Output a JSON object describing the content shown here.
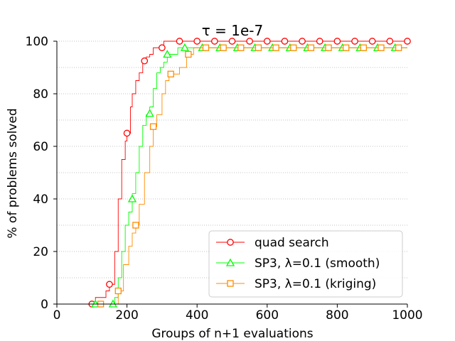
{
  "chart_data": {
    "type": "line",
    "title": "τ = 1e-7",
    "xlabel": "Groups of n+1 evaluations",
    "ylabel": "% of problems solved",
    "xlim": [
      0,
      1000
    ],
    "ylim": [
      0,
      100
    ],
    "xticks": [
      0,
      200,
      400,
      600,
      800,
      1000
    ],
    "yticks": [
      0,
      20,
      40,
      60,
      80,
      100
    ],
    "grid": "horizontal dotted",
    "legend_position": "lower-right",
    "series": [
      {
        "name": "quad search",
        "color": "#ff0000",
        "marker": "circle",
        "line": [
          [
            0,
            0
          ],
          [
            100,
            0
          ],
          [
            110,
            2.5
          ],
          [
            120,
            2.5
          ],
          [
            140,
            5
          ],
          [
            150,
            7.5
          ],
          [
            165,
            20
          ],
          [
            175,
            40
          ],
          [
            185,
            55
          ],
          [
            195,
            62
          ],
          [
            200,
            65
          ],
          [
            210,
            75
          ],
          [
            215,
            80
          ],
          [
            225,
            85
          ],
          [
            235,
            88
          ],
          [
            245,
            92
          ],
          [
            255,
            94
          ],
          [
            265,
            95
          ],
          [
            275,
            97.5
          ],
          [
            300,
            97.5
          ],
          [
            305,
            100
          ],
          [
            1000,
            100
          ]
        ],
        "markers": [
          [
            100,
            0
          ],
          [
            150,
            7.5
          ],
          [
            200,
            65
          ],
          [
            250,
            92.5
          ],
          [
            300,
            97.5
          ],
          [
            350,
            100
          ],
          [
            400,
            100
          ],
          [
            450,
            100
          ],
          [
            500,
            100
          ],
          [
            550,
            100
          ],
          [
            600,
            100
          ],
          [
            650,
            100
          ],
          [
            700,
            100
          ],
          [
            750,
            100
          ],
          [
            800,
            100
          ],
          [
            850,
            100
          ],
          [
            900,
            100
          ],
          [
            950,
            100
          ],
          [
            1000,
            100
          ]
        ]
      },
      {
        "name": "SP3, λ=0.1 (smooth)",
        "color": "#00ff00",
        "marker": "triangle",
        "line": [
          [
            0,
            0
          ],
          [
            110,
            0
          ],
          [
            160,
            0
          ],
          [
            165,
            2.5
          ],
          [
            175,
            10
          ],
          [
            185,
            20
          ],
          [
            195,
            30
          ],
          [
            205,
            35
          ],
          [
            215,
            42
          ],
          [
            225,
            50
          ],
          [
            235,
            60
          ],
          [
            245,
            68
          ],
          [
            255,
            72
          ],
          [
            265,
            75
          ],
          [
            275,
            82
          ],
          [
            285,
            88
          ],
          [
            295,
            90
          ],
          [
            305,
            92
          ],
          [
            315,
            95
          ],
          [
            340,
            95
          ],
          [
            345,
            97.5
          ],
          [
            1000,
            97.5
          ]
        ],
        "markers": [
          [
            110,
            0
          ],
          [
            160,
            0
          ],
          [
            215,
            40
          ],
          [
            265,
            72.5
          ],
          [
            315,
            95
          ],
          [
            365,
            97.5
          ],
          [
            415,
            97.5
          ],
          [
            465,
            97.5
          ],
          [
            515,
            97.5
          ],
          [
            565,
            97.5
          ],
          [
            615,
            97.5
          ],
          [
            665,
            97.5
          ],
          [
            715,
            97.5
          ],
          [
            765,
            97.5
          ],
          [
            815,
            97.5
          ],
          [
            865,
            97.5
          ],
          [
            915,
            97.5
          ],
          [
            965,
            97.5
          ]
        ]
      },
      {
        "name": "SP3, λ=0.1 (kriging)",
        "color": "#ff8c00",
        "marker": "square",
        "line": [
          [
            0,
            0
          ],
          [
            125,
            0
          ],
          [
            170,
            0
          ],
          [
            175,
            5
          ],
          [
            190,
            15
          ],
          [
            205,
            22
          ],
          [
            215,
            27
          ],
          [
            225,
            30
          ],
          [
            235,
            38
          ],
          [
            250,
            50
          ],
          [
            265,
            60
          ],
          [
            275,
            67.5
          ],
          [
            285,
            72
          ],
          [
            300,
            80
          ],
          [
            310,
            85
          ],
          [
            320,
            87.5
          ],
          [
            345,
            87.5
          ],
          [
            350,
            90
          ],
          [
            370,
            95
          ],
          [
            390,
            97.5
          ],
          [
            1000,
            97.5
          ]
        ],
        "markers": [
          [
            125,
            0
          ],
          [
            175,
            5
          ],
          [
            225,
            30
          ],
          [
            275,
            67.5
          ],
          [
            325,
            87.5
          ],
          [
            375,
            95
          ],
          [
            425,
            97.5
          ],
          [
            475,
            97.5
          ],
          [
            525,
            97.5
          ],
          [
            575,
            97.5
          ],
          [
            625,
            97.5
          ],
          [
            675,
            97.5
          ],
          [
            725,
            97.5
          ],
          [
            775,
            97.5
          ],
          [
            825,
            97.5
          ],
          [
            875,
            97.5
          ],
          [
            925,
            97.5
          ],
          [
            975,
            97.5
          ]
        ]
      }
    ]
  }
}
